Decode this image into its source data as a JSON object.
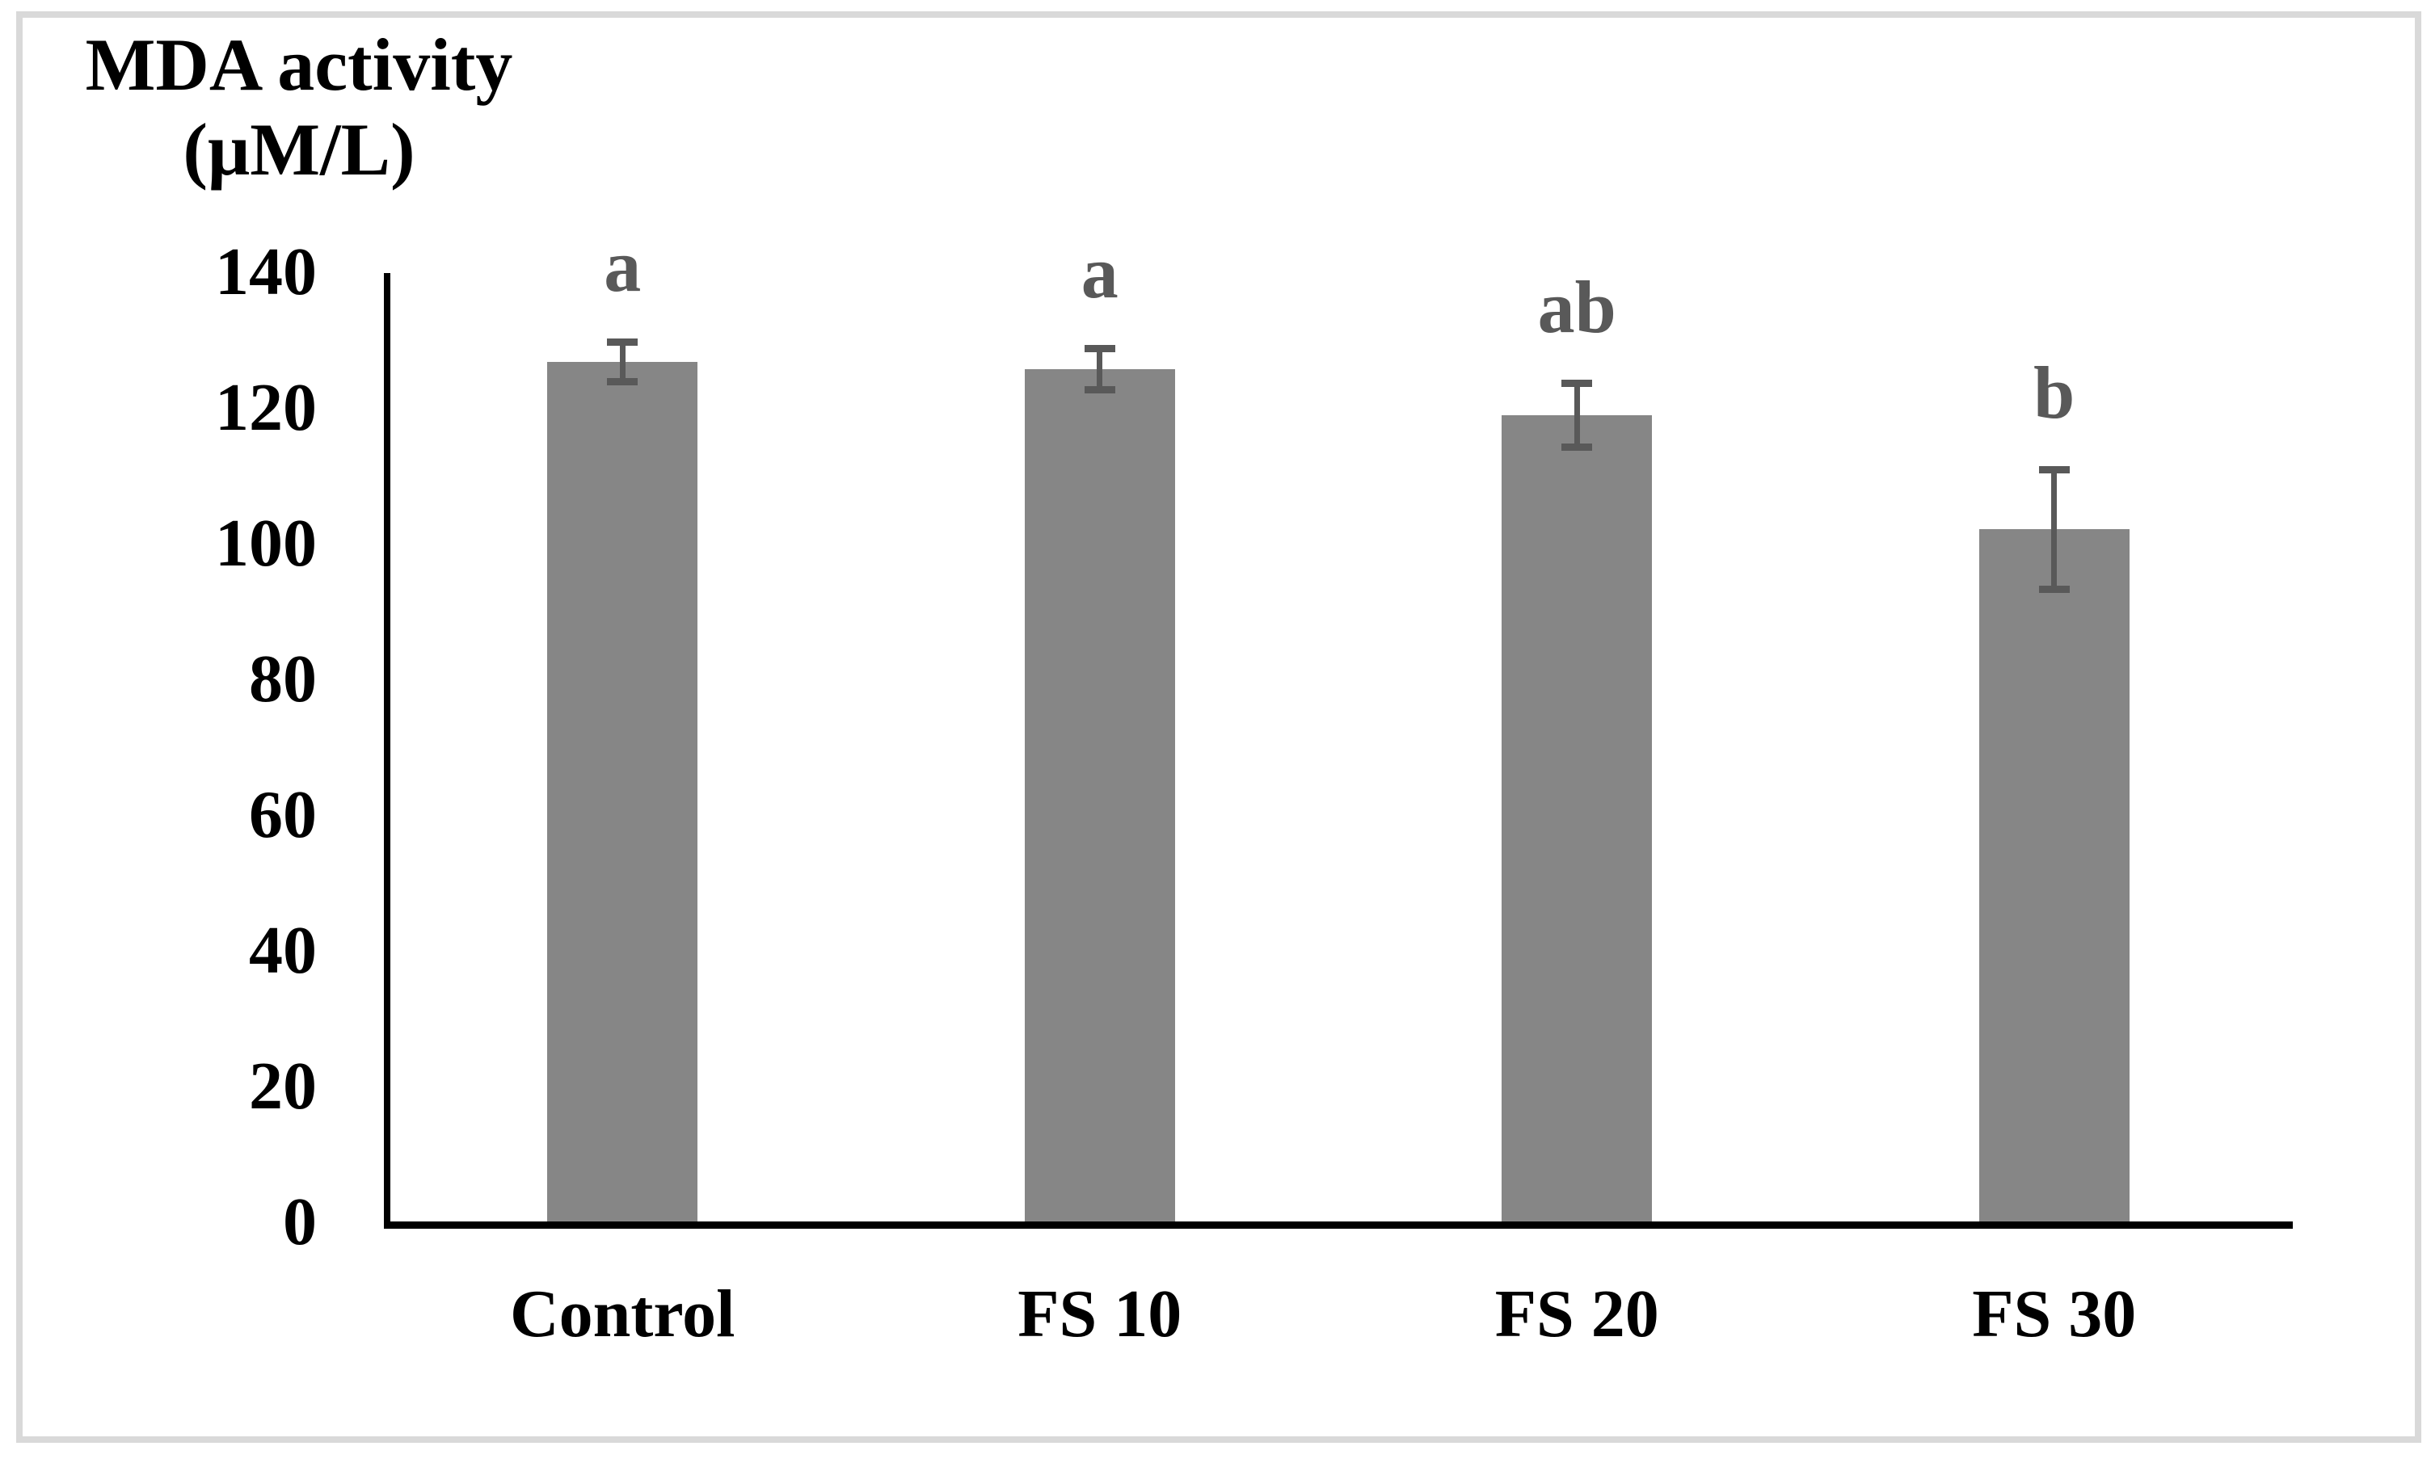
{
  "figure": {
    "title_line1": "MDA activity",
    "title_line2": "(μM/L)"
  },
  "chart_data": {
    "type": "bar",
    "title": "MDA activity (μM/L)",
    "xlabel": "",
    "ylabel": "MDA activity (μM/L)",
    "categories": [
      "Control",
      "FS 10",
      "FS 20",
      "FS 30"
    ],
    "series": [
      {
        "name": "MDA activity",
        "values": [
          126.8,
          125.7,
          118.9,
          102.1
        ],
        "error_bars": [
          2.9,
          3.0,
          4.7,
          8.8
        ],
        "significance_letters": [
          "a",
          "a",
          "ab",
          "b"
        ]
      }
    ],
    "ylim": [
      0,
      140
    ],
    "yticks": [
      0,
      20,
      40,
      60,
      80,
      100,
      120,
      140
    ],
    "grid": false,
    "legend_position": "none",
    "colors": {
      "bar_fill": "#868686",
      "error_bar": "#595959",
      "significance_letter": "#595959",
      "axis_line": "#000000",
      "text": "#000000",
      "figure_border": "#d9d9d9",
      "background": "#ffffff"
    }
  }
}
